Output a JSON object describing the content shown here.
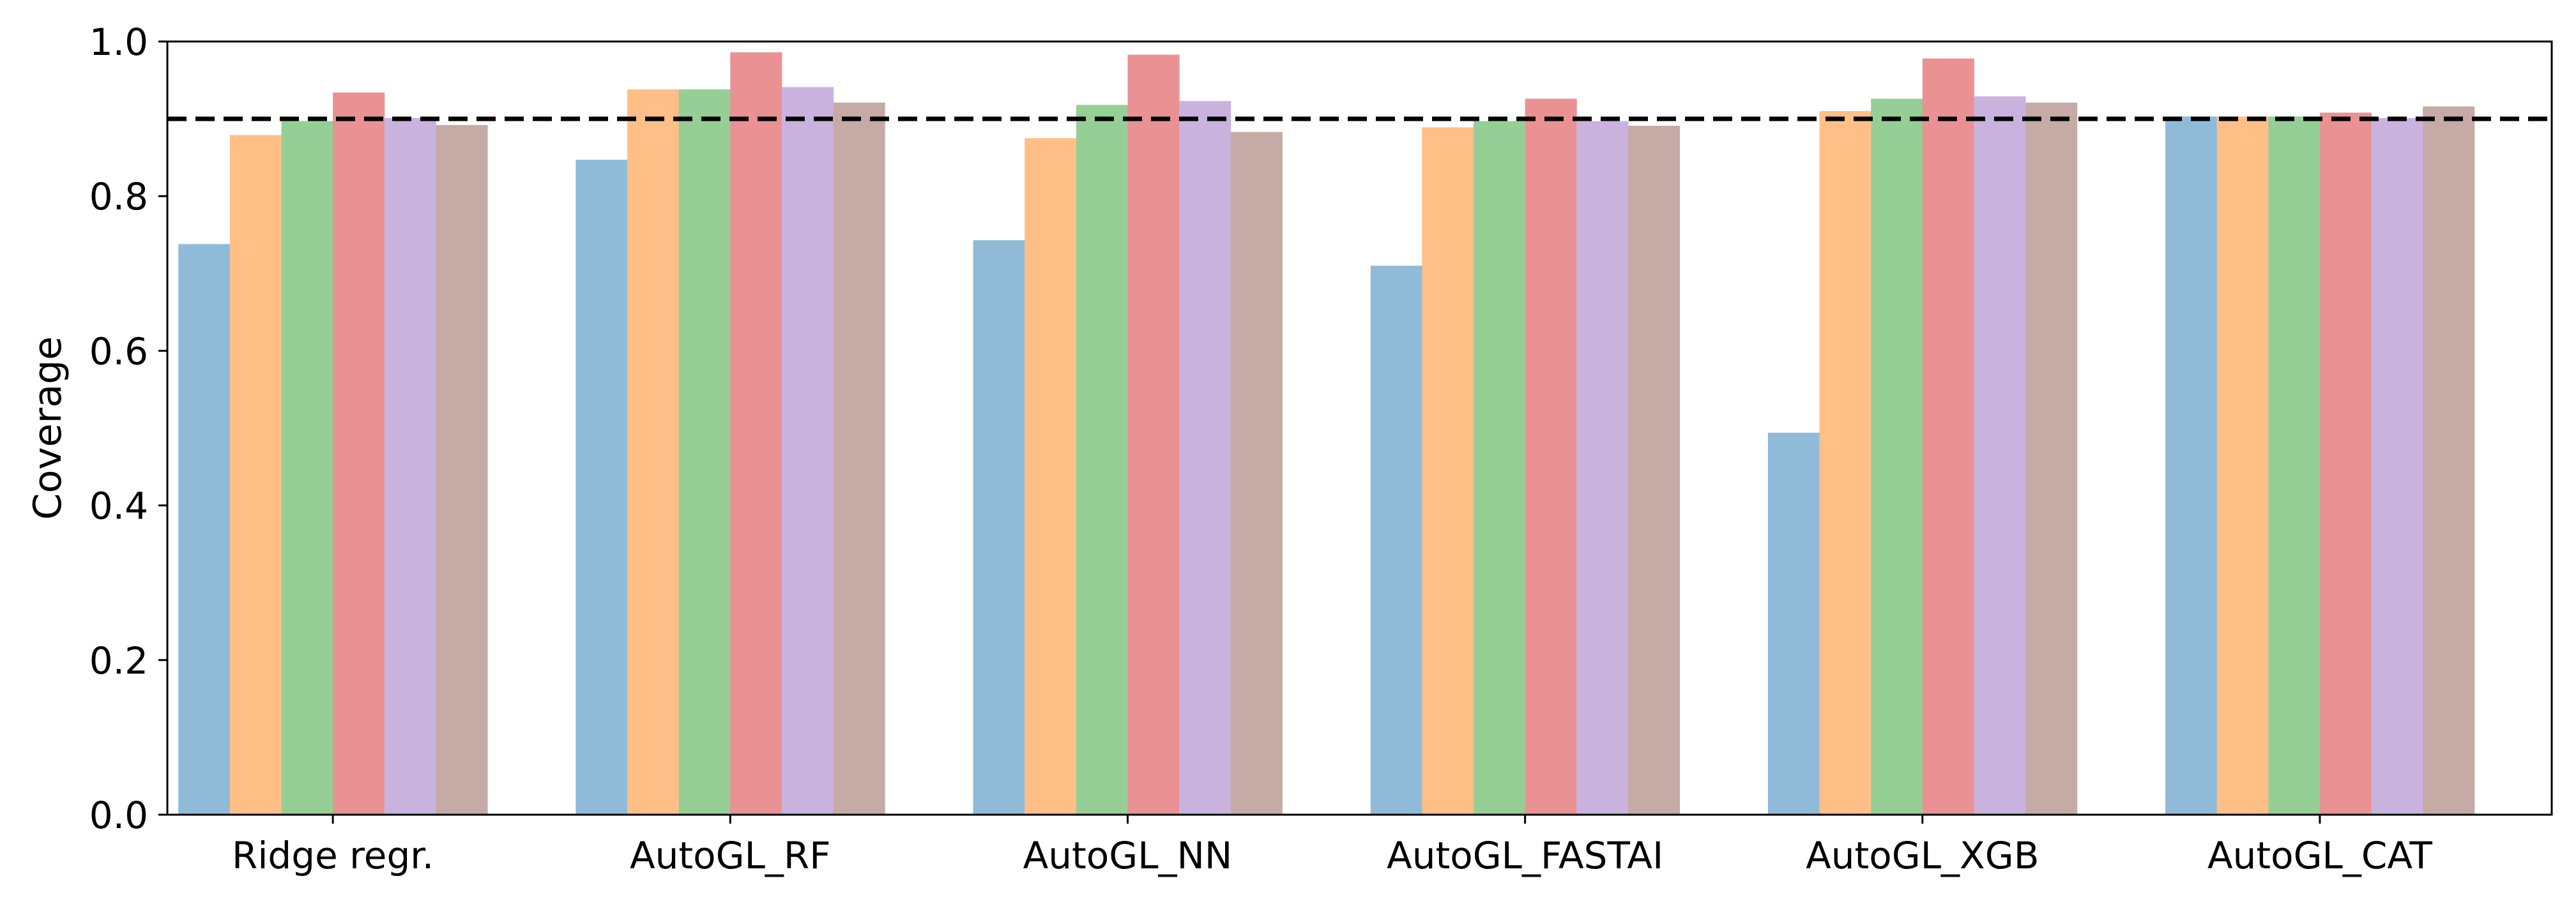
{
  "chart_data": {
    "type": "bar",
    "title": "",
    "xlabel": "",
    "ylabel": "Coverage",
    "ylim": [
      0,
      1.0
    ],
    "yticks": [
      0.0,
      0.2,
      0.4,
      0.6,
      0.8,
      1.0
    ],
    "ytick_labels": [
      "0.0",
      "0.2",
      "0.4",
      "0.6",
      "0.8",
      "1.0"
    ],
    "grid": false,
    "legend": "none",
    "categories": [
      "Ridge regr.",
      "AutoGL_RF",
      "AutoGL_NN",
      "AutoGL_FASTAI",
      "AutoGL_XGB",
      "AutoGL_CAT"
    ],
    "reference_line": {
      "y": 0.9,
      "style": "dashed",
      "color": "#000000"
    },
    "series": [
      {
        "color": "#8fbbd9",
        "values": [
          0.738,
          0.847,
          0.743,
          0.71,
          0.494,
          0.903
        ]
      },
      {
        "color": "#ffbf86",
        "values": [
          0.879,
          0.938,
          0.875,
          0.889,
          0.91,
          0.903
        ]
      },
      {
        "color": "#95cf95",
        "values": [
          0.897,
          0.938,
          0.918,
          0.897,
          0.926,
          0.903
        ]
      },
      {
        "color": "#ea9293",
        "values": [
          0.934,
          0.986,
          0.983,
          0.926,
          0.978,
          0.908
        ]
      },
      {
        "color": "#c9b3de",
        "values": [
          0.901,
          0.941,
          0.923,
          0.897,
          0.929,
          0.901
        ]
      },
      {
        "color": "#c6aaa5",
        "values": [
          0.892,
          0.921,
          0.883,
          0.891,
          0.921,
          0.916
        ]
      }
    ]
  }
}
